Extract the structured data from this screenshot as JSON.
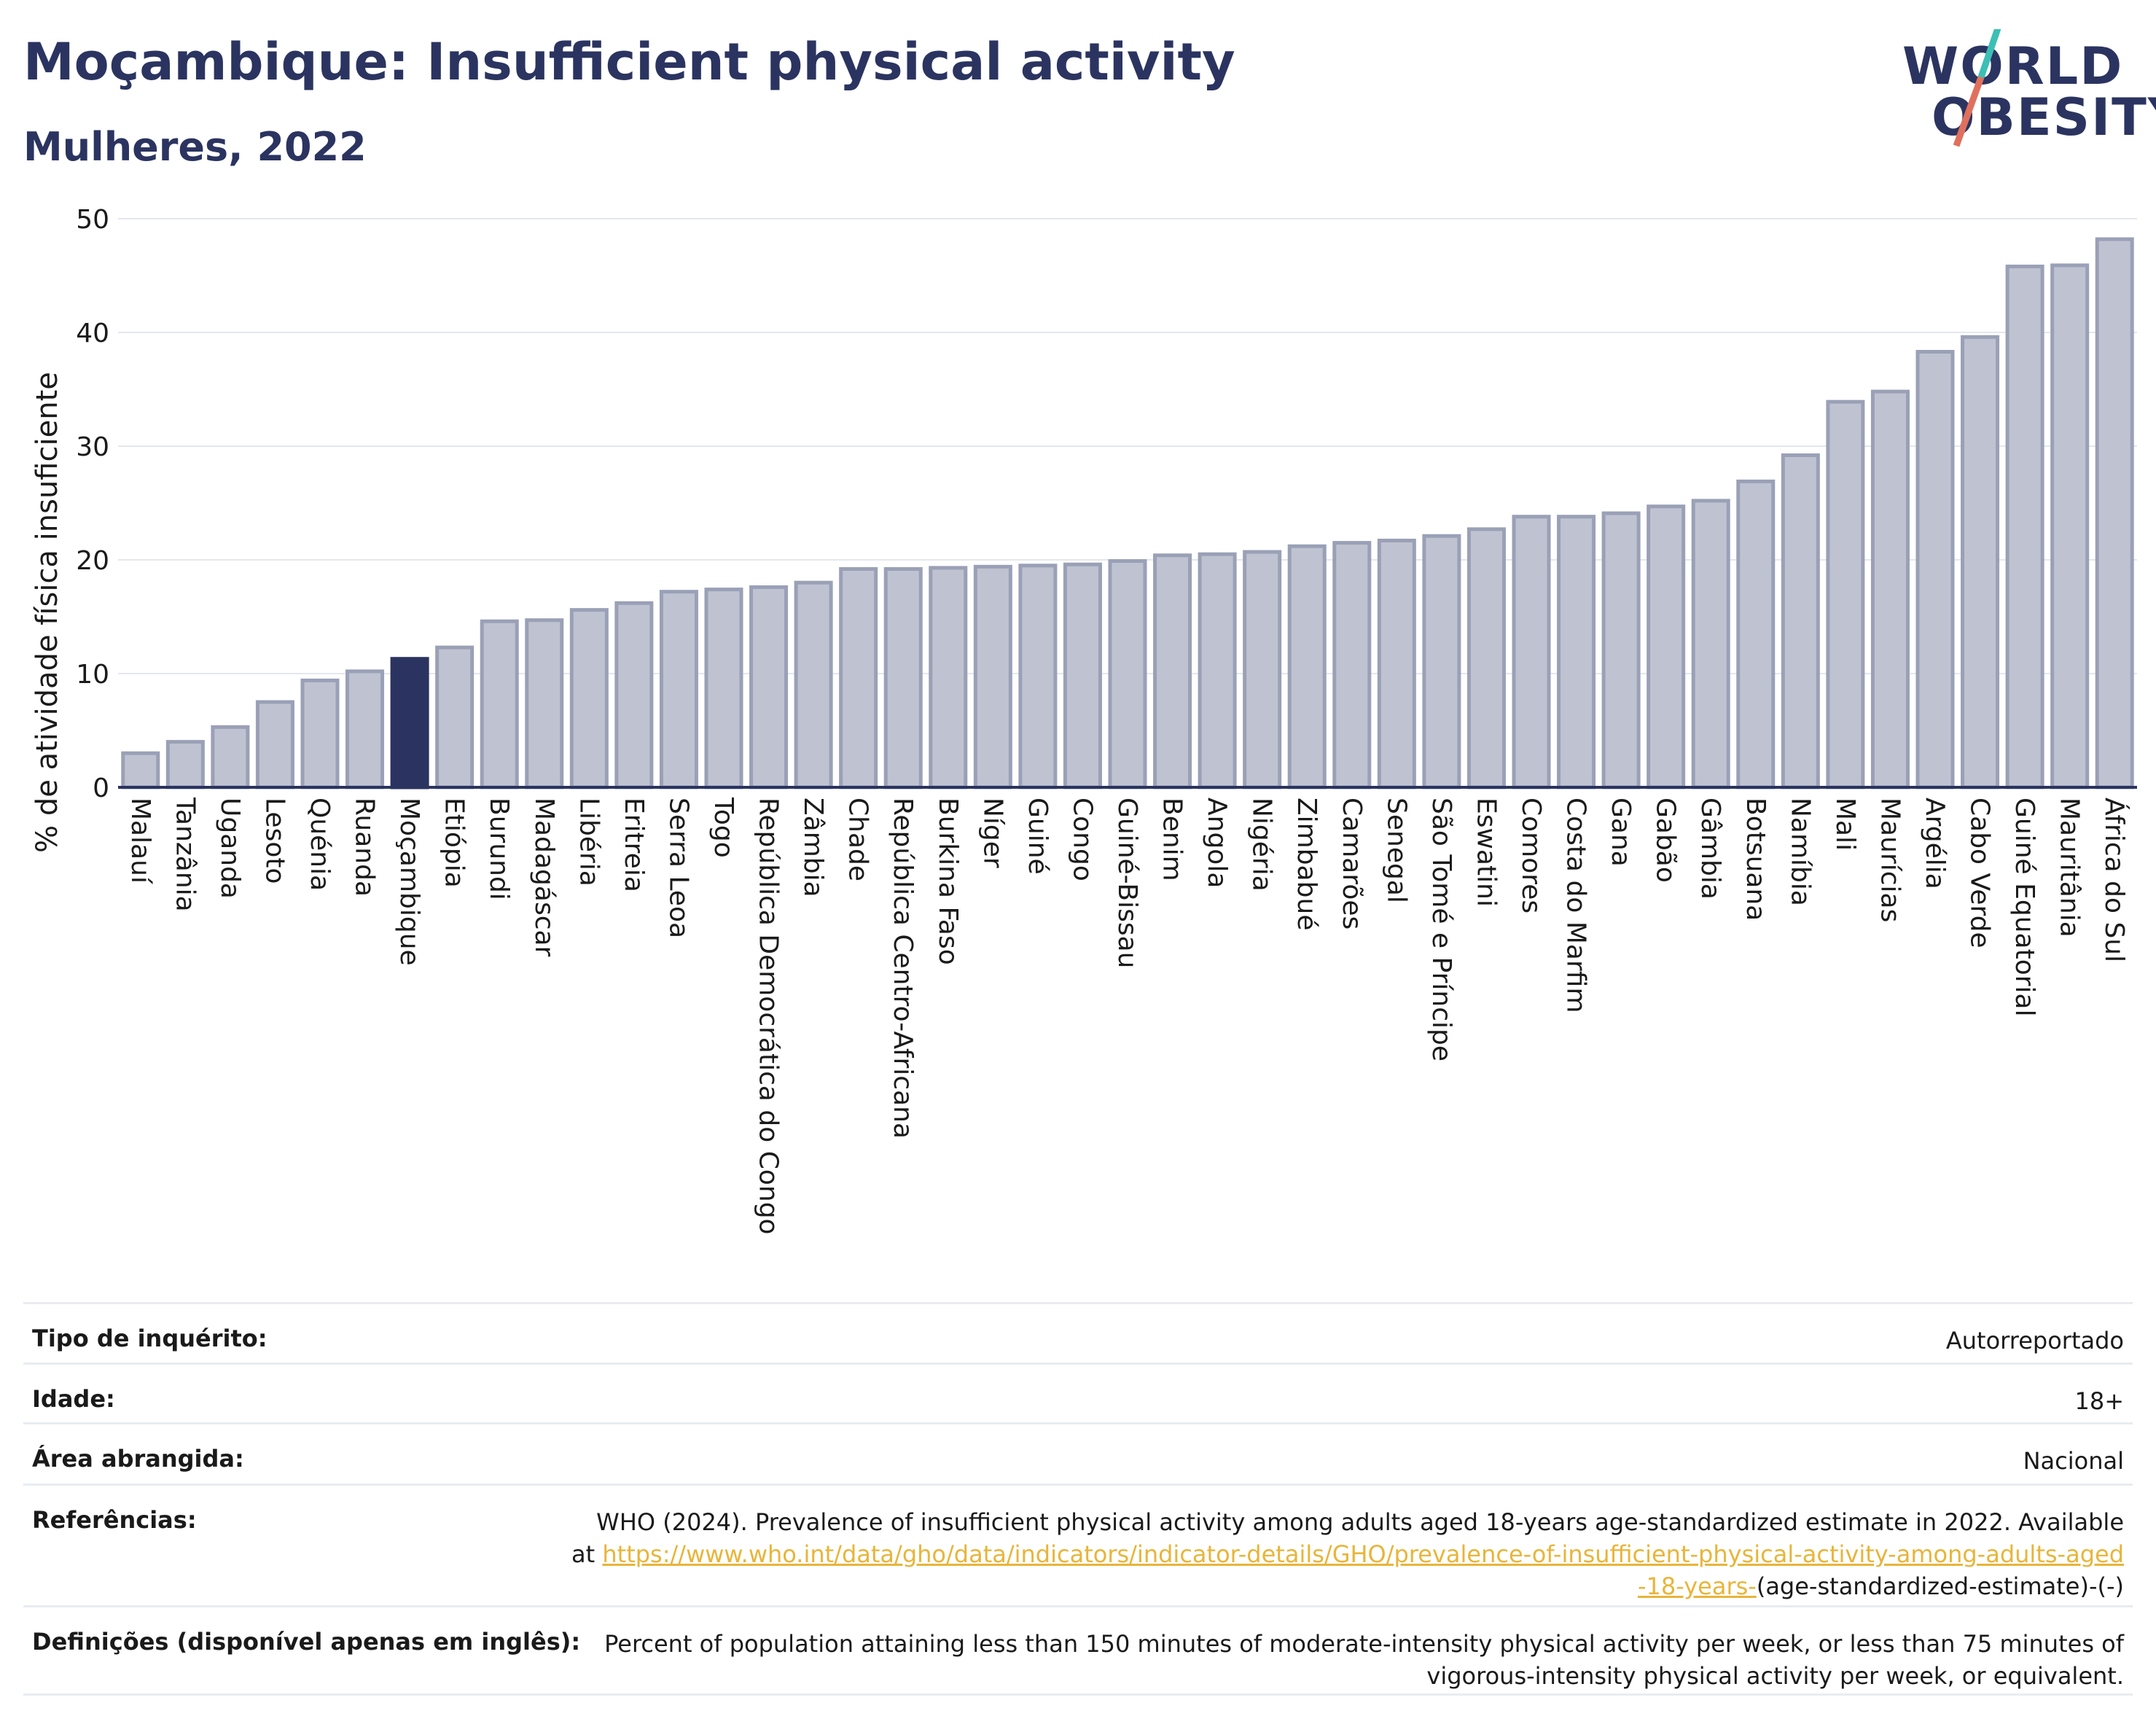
{
  "header": {
    "title": "Moçambique: Insufficient physical activity",
    "subtitle": "Mulheres, 2022"
  },
  "logo": {
    "line1": "WORLD",
    "line2": "OBESITY"
  },
  "chart_data": {
    "type": "bar",
    "ylabel": "% de atividade física insuficiente",
    "xlabel": "",
    "ylim": [
      0,
      50
    ],
    "yticks": [
      "0",
      "10",
      "20",
      "30",
      "40",
      "50"
    ],
    "grid": true,
    "highlight": "Moçambique",
    "colors": {
      "bar": "#bfc3d1",
      "bar_edge": "#9aa0b6",
      "highlight": "#2b3460"
    },
    "categories": [
      "Malauí",
      "Tanzânia",
      "Uganda",
      "Lesoto",
      "Quénia",
      "Ruanda",
      "Moçambique",
      "Etiópia",
      "Burundi",
      "Madagáscar",
      "Libéria",
      "Eritreia",
      "Serra Leoa",
      "Togo",
      "República Democrática do Congo",
      "Zâmbia",
      "Chade",
      "República Centro-Africana",
      "Burkina Faso",
      "Níger",
      "Guiné",
      "Congo",
      "Guiné-Bissau",
      "Benim",
      "Angola",
      "Nigéria",
      "Zimbabué",
      "Camarões",
      "Senegal",
      "São Tomé e Príncipe",
      "Eswatini",
      "Comores",
      "Costa do Marfim",
      "Gana",
      "Gabão",
      "Gâmbia",
      "Botsuana",
      "Namíbia",
      "Mali",
      "Maurícias",
      "Argélia",
      "Cabo Verde",
      "Guiné Equatorial",
      "Mauritânia",
      "África do Sul"
    ],
    "values": [
      3.0,
      4.0,
      5.3,
      7.5,
      9.4,
      10.2,
      11.3,
      12.3,
      14.6,
      14.7,
      15.6,
      16.2,
      17.2,
      17.4,
      17.6,
      18.0,
      19.2,
      19.2,
      19.3,
      19.4,
      19.5,
      19.6,
      19.9,
      20.4,
      20.5,
      20.7,
      21.2,
      21.5,
      21.7,
      22.1,
      22.7,
      23.8,
      23.8,
      24.1,
      24.7,
      25.2,
      26.9,
      29.2,
      33.9,
      34.8,
      38.3,
      39.6,
      45.8,
      45.9,
      48.2
    ]
  },
  "details": {
    "survey_label": "Tipo de inquérito:",
    "survey_value": "Autorreportado",
    "age_label": "Idade:",
    "age_value": "18+",
    "area_label": "Área abrangida:",
    "area_value": "Nacional",
    "ref_label": "Referências:",
    "ref_text": "WHO (2024). Prevalence of insufficient physical activity among adults aged 18-years age-standardized estimate in 2022. Available at",
    "ref_link": "https://www.who.int/data/gho/data/indicators/indicator-details/GHO/prevalence-of-insufficient-physical-activity-among-adults-aged-18-years-",
    "ref_suffix": "(age-standardized-estimate)-(-)",
    "def_label": "Definições (disponível apenas em inglês):",
    "def_text": "Percent of population attaining less than 150 minutes of moderate-intensity physical activity per week, or less than 75 minutes of vigorous-intensity physical activity per week, or equivalent."
  }
}
